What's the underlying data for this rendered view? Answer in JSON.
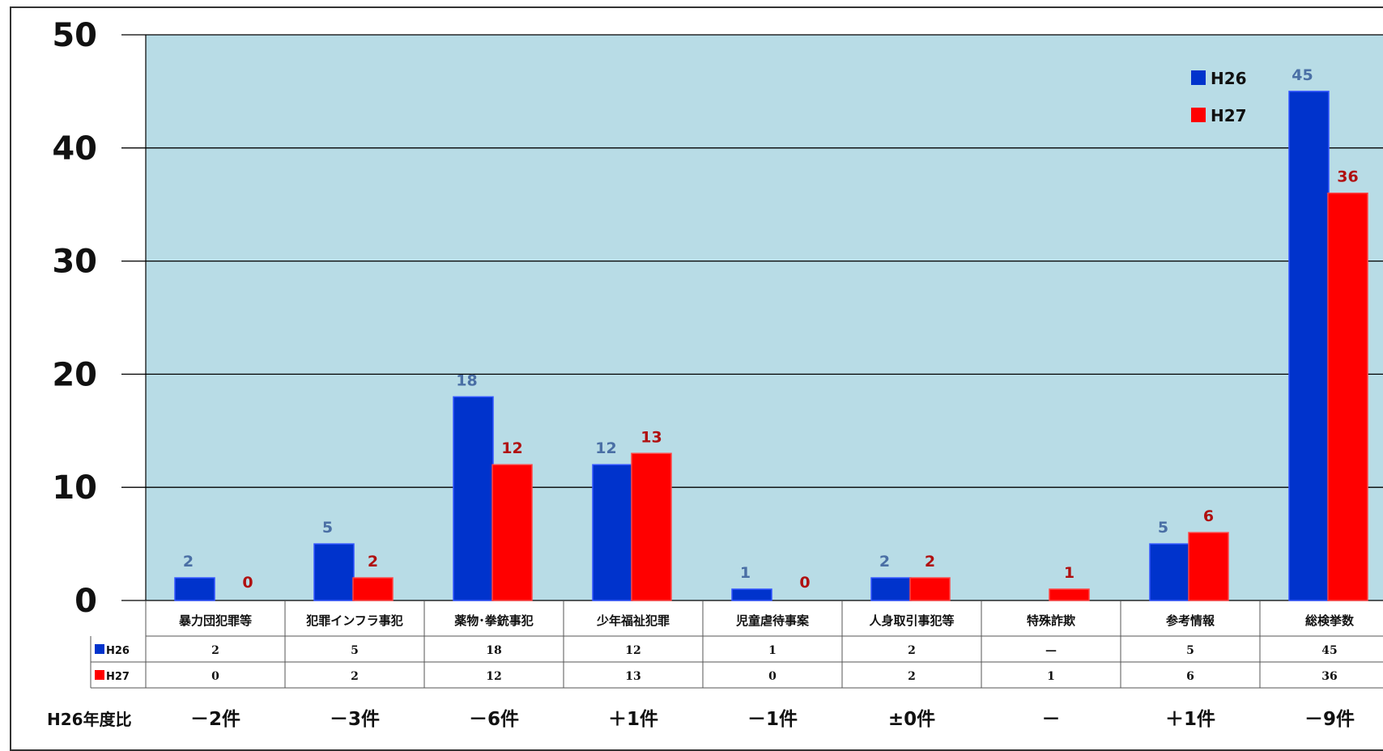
{
  "chart_data": {
    "type": "bar",
    "ylim": [
      0,
      50
    ],
    "yticks": [
      "0",
      "10",
      "20",
      "30",
      "40",
      "50"
    ],
    "grid": true,
    "legend_position": "top-right",
    "categories": [
      "暴力団犯罪等",
      "犯罪インフラ事犯",
      "薬物･拳銃事犯",
      "少年福祉犯罪",
      "児童虐待事案",
      "人身取引事犯等",
      "特殊詐欺",
      "参考情報",
      "総検挙数"
    ],
    "series": [
      {
        "name": "H26",
        "color": "#0033cc",
        "label_color": "#4a6fa5",
        "values": [
          2,
          5,
          18,
          12,
          1,
          2,
          null,
          5,
          45
        ],
        "table": [
          "2",
          "5",
          "18",
          "12",
          "1",
          "2",
          "—",
          "5",
          "45"
        ]
      },
      {
        "name": "H27",
        "color": "#ff0000",
        "label_color": "#b01010",
        "values": [
          0,
          2,
          12,
          13,
          0,
          2,
          1,
          6,
          36
        ],
        "table": [
          "0",
          "2",
          "12",
          "13",
          "0",
          "2",
          "1",
          "6",
          "36"
        ]
      }
    ],
    "comparison_label": "H26年度比",
    "comparison": [
      "－2件",
      "－3件",
      "－6件",
      "＋1件",
      "－1件",
      "±0件",
      "－",
      "＋1件",
      "－9件"
    ]
  },
  "colors": {
    "plot_bg": "#b8dce6",
    "grid": "#000000"
  }
}
